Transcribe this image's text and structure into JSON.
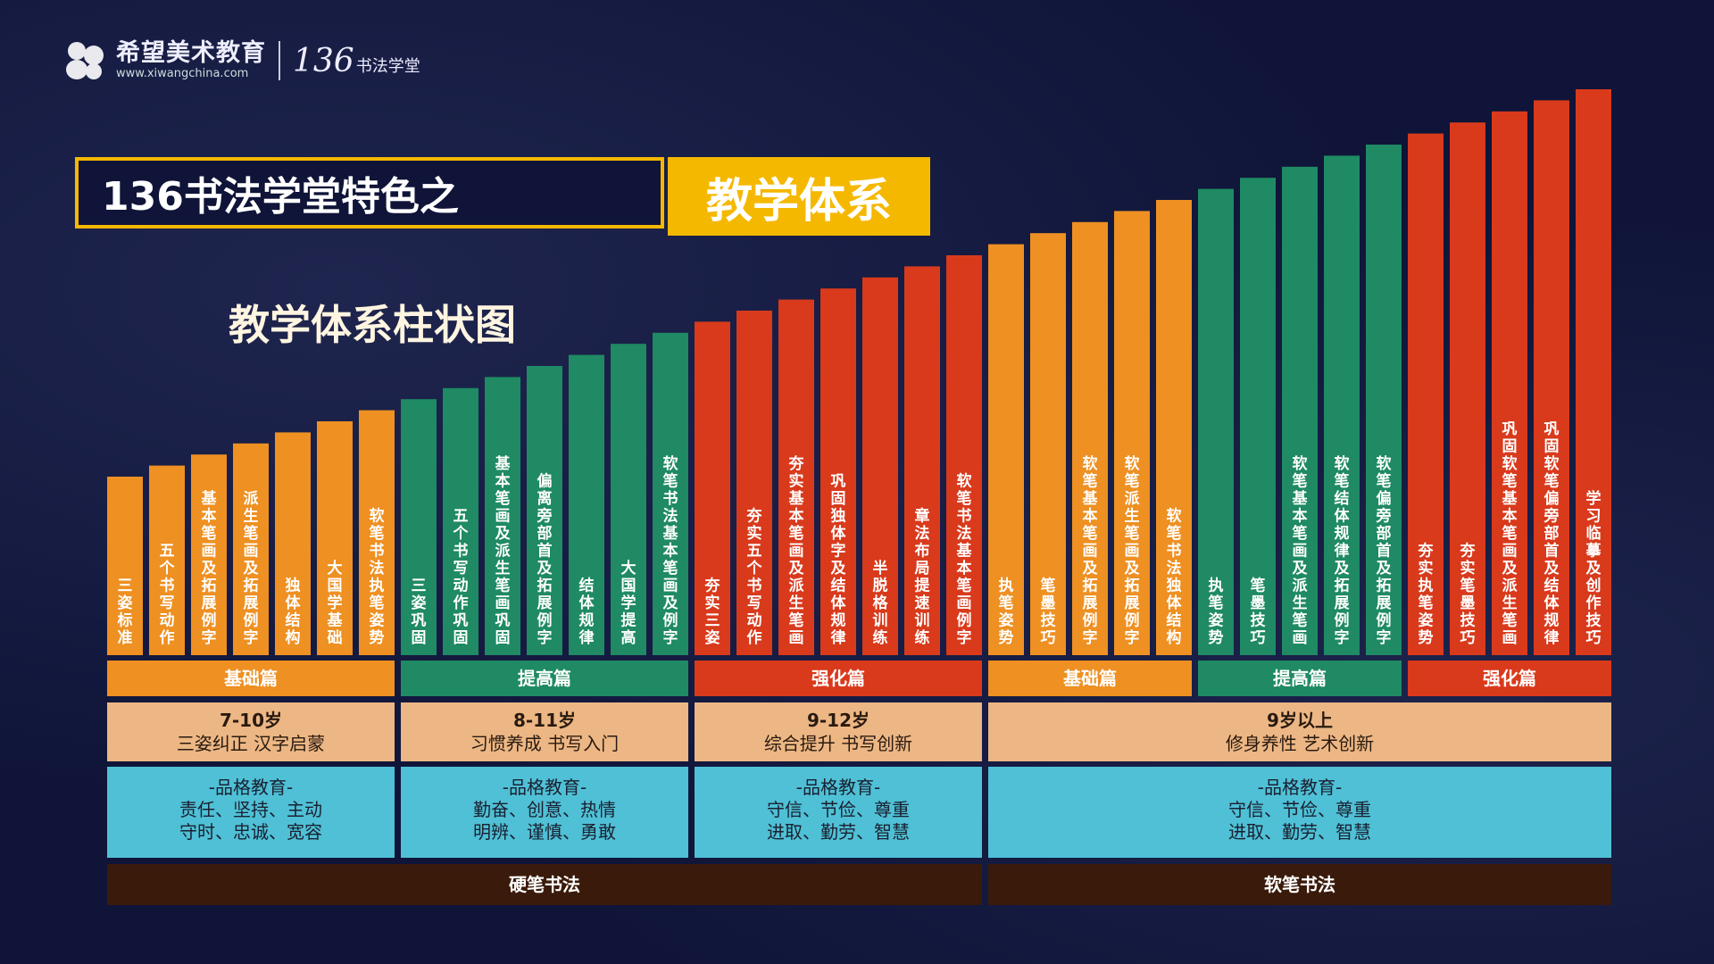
{
  "logo": {
    "name": "希望美术教育",
    "url": "www.xiwangchina.com",
    "brand": "136",
    "brand_sub": "书法学堂"
  },
  "banner": {
    "left": "136书法学堂特色之",
    "right": "教学体系"
  },
  "subtitle": "教学体系柱状图",
  "colors": {
    "orange": "#ee9022",
    "green": "#1f8a63",
    "red": "#d93a1c",
    "tan": "#ecb784",
    "cyan": "#4fc0d6",
    "brown": "#3a1a0a",
    "accent": "#f5b800"
  },
  "chart_data": {
    "type": "bar",
    "categories": [
      "三姿标准",
      "五个书写动作",
      "基本笔画及拓展例字",
      "派生笔画及拓展例字",
      "独体结构",
      "大国学基础",
      "软笔书法执笔姿势",
      "三姿巩固",
      "五个书写动作巩固",
      "基本笔画及派生笔画巩固",
      "偏离旁部首及拓展例字",
      "结体规律",
      "大国学提高",
      "软笔书法基本笔画及例字",
      "夯实三姿",
      "夯实五个书写动作",
      "夯实基本笔画及派生笔画",
      "巩固独体字及结体规律",
      "半脱格训练",
      "章法布局提速训练",
      "软笔书法基本笔画例字",
      "执笔姿势",
      "笔墨技巧",
      "软笔基本笔画及拓展例字",
      "软笔派生笔画及拓展例字",
      "软笔书法独体结构",
      "执笔姿势",
      "笔墨技巧",
      "软笔基本笔画及派生笔画",
      "软笔结体规律及拓展例字",
      "软笔偏旁部首及拓展例字",
      "夯实执笔姿势",
      "夯实笔墨技巧",
      "巩固软笔基本笔画及派生笔画",
      "巩固软笔偏旁部首及结体规律",
      "学习临摹及创作技巧"
    ],
    "values": [
      1,
      2,
      3,
      4,
      5,
      6,
      7,
      8,
      9,
      10,
      11,
      12,
      13,
      14,
      15,
      16,
      17,
      18,
      19,
      20,
      21,
      22,
      23,
      24,
      25,
      26,
      27,
      28,
      29,
      30,
      31,
      32,
      33,
      34,
      35,
      36
    ],
    "bar_groups": [
      "基础篇",
      "基础篇",
      "基础篇",
      "基础篇",
      "基础篇",
      "基础篇",
      "基础篇",
      "提高篇",
      "提高篇",
      "提高篇",
      "提高篇",
      "提高篇",
      "提高篇",
      "提高篇",
      "强化篇",
      "强化篇",
      "强化篇",
      "强化篇",
      "强化篇",
      "强化篇",
      "强化篇",
      "基础篇",
      "基础篇",
      "基础篇",
      "基础篇",
      "基础篇",
      "提高篇",
      "提高篇",
      "提高篇",
      "提高篇",
      "提高篇",
      "强化篇",
      "强化篇",
      "强化篇",
      "强化篇",
      "强化篇"
    ]
  },
  "stages": [
    {
      "label": "基础篇",
      "start": 0,
      "end": 6,
      "color": "orange"
    },
    {
      "label": "提高篇",
      "start": 7,
      "end": 13,
      "color": "green"
    },
    {
      "label": "强化篇",
      "start": 14,
      "end": 20,
      "color": "red"
    },
    {
      "label": "基础篇",
      "start": 21,
      "end": 25,
      "color": "orange"
    },
    {
      "label": "提高篇",
      "start": 26,
      "end": 30,
      "color": "green"
    },
    {
      "label": "强化篇",
      "start": 31,
      "end": 35,
      "color": "red"
    }
  ],
  "ages": [
    {
      "age": "7-10岁",
      "desc": "三姿纠正 汉字启蒙",
      "start": 0,
      "end": 6
    },
    {
      "age": "8-11岁",
      "desc": "习惯养成 书写入门",
      "start": 7,
      "end": 13
    },
    {
      "age": "9-12岁",
      "desc": "综合提升 书写创新",
      "start": 14,
      "end": 20
    },
    {
      "age": "9岁以上",
      "desc": "修身养性 艺术创新",
      "start": 21,
      "end": 35
    }
  ],
  "character": [
    {
      "title": "-品格教育-",
      "line1": "责任、坚持、主动",
      "line2": "守时、忠诚、宽容",
      "start": 0,
      "end": 6
    },
    {
      "title": "-品格教育-",
      "line1": "勤奋、创意、热情",
      "line2": "明辨、谨慎、勇敢",
      "start": 7,
      "end": 13
    },
    {
      "title": "-品格教育-",
      "line1": "守信、节俭、尊重",
      "line2": "进取、勤劳、智慧",
      "start": 14,
      "end": 20
    },
    {
      "title": "-品格教育-",
      "line1": "守信、节俭、尊重",
      "line2": "进取、勤劳、智慧",
      "start": 21,
      "end": 35
    }
  ],
  "types": [
    {
      "label": "硬笔书法",
      "start": 0,
      "end": 20
    },
    {
      "label": "软笔书法",
      "start": 21,
      "end": 35
    }
  ]
}
